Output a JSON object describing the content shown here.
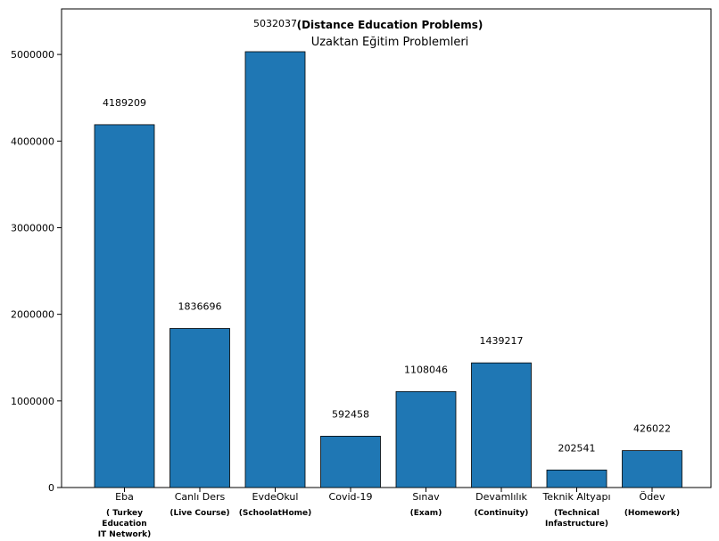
{
  "chart_data": {
    "type": "bar",
    "title_en": "(Distance Education Problems)",
    "title_tr": "Uzaktan Eğitim Problemleri",
    "categories": [
      "Eba",
      "Canlı Ders",
      "EvdeOkul",
      "Covid-19",
      "Sınav",
      "Devamlılık",
      "Teknik Altyapı",
      "Ödev"
    ],
    "english_labels": [
      [
        "( Turkey",
        "Education",
        "IT Network)"
      ],
      [
        "(Live Course)"
      ],
      [
        "(SchoolatHome)"
      ],
      [],
      [
        "(Exam)"
      ],
      [
        "(Continuity)"
      ],
      [
        "(Technical",
        "Infastructure)"
      ],
      [
        "(Homework)"
      ]
    ],
    "values": [
      4189209,
      1836696,
      5032037,
      592458,
      1108046,
      1439217,
      202541,
      426022
    ],
    "value_labels": [
      "4189209",
      "1836696",
      "5032037",
      "592458",
      "1108046",
      "1439217",
      "202541",
      "426022"
    ],
    "yticks": [
      0,
      1000000,
      2000000,
      3000000,
      4000000,
      5000000
    ],
    "ytick_labels": [
      "0",
      "1000000",
      "2000000",
      "3000000",
      "4000000",
      "5000000"
    ],
    "ylim": [
      0,
      5032037
    ],
    "xlabel": "",
    "ylabel": "",
    "grid": false,
    "bar_color": "#1f77b4",
    "bar_edge_color": "#000000"
  }
}
